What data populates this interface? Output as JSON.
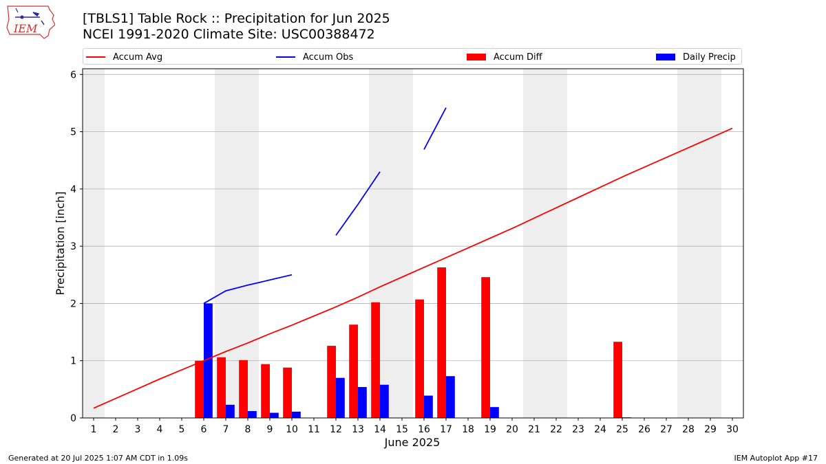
{
  "header": {
    "title_line1": "[TBLS1] Table Rock :: Precipitation for Jun 2025",
    "title_line2": "NCEI 1991-2020 Climate Site: USC00388472",
    "logo_text": "IEM"
  },
  "footer": {
    "left": "Generated at 20 Jul 2025 1:07 AM CDT in 1.09s",
    "right": "IEM Autoplot App #17"
  },
  "colors": {
    "accum_avg": "#ff0000",
    "accum_obs": "#0000ff",
    "accum_diff": "#ff0000",
    "daily_precip": "#0000ff",
    "weekend_shade": "#eeeeee",
    "grid": "#b0b0b0"
  },
  "chart_data": {
    "type": "bar",
    "xlabel": "June 2025",
    "ylabel": "Precipitation [inch]",
    "xlim": [
      1,
      30
    ],
    "ylim": [
      0,
      6.1
    ],
    "yticks": [
      0,
      1,
      2,
      3,
      4,
      5,
      6
    ],
    "grid": "horizontal",
    "legend_placement": "top, above plot",
    "shaded_days": [
      1,
      7,
      8,
      14,
      15,
      21,
      22,
      28,
      29
    ],
    "categories": [
      "1",
      "2",
      "3",
      "4",
      "5",
      "6",
      "7",
      "8",
      "9",
      "10",
      "11",
      "12",
      "13",
      "14",
      "15",
      "16",
      "17",
      "18",
      "19",
      "20",
      "21",
      "22",
      "23",
      "24",
      "25",
      "26",
      "27",
      "28",
      "29",
      "30"
    ],
    "series": [
      {
        "name": "Accum Avg",
        "kind": "line",
        "values": [
          0.17,
          0.34,
          0.51,
          0.68,
          0.84,
          1.0,
          1.16,
          1.31,
          1.47,
          1.62,
          1.78,
          1.94,
          2.11,
          2.29,
          2.46,
          2.63,
          2.8,
          2.97,
          3.14,
          3.31,
          3.49,
          3.67,
          3.85,
          4.03,
          4.21,
          4.38,
          4.55,
          4.72,
          4.89,
          5.06
        ]
      },
      {
        "name": "Accum Obs",
        "kind": "line",
        "values": [
          null,
          null,
          null,
          null,
          null,
          2.0,
          2.22,
          2.32,
          2.41,
          2.5,
          null,
          3.19,
          3.73,
          4.3,
          null,
          4.69,
          5.42,
          null,
          null,
          null,
          null,
          null,
          null,
          null,
          null,
          null,
          null,
          null,
          null,
          null
        ]
      },
      {
        "name": "Accum Diff",
        "kind": "bar",
        "values": [
          0,
          0,
          0,
          0,
          0,
          1.0,
          1.06,
          1.01,
          0.94,
          0.88,
          0,
          1.26,
          1.63,
          2.02,
          0,
          2.07,
          2.63,
          0,
          2.46,
          0,
          0,
          0,
          0,
          0,
          1.33,
          0,
          0,
          0,
          0,
          0
        ]
      },
      {
        "name": "Daily Precip",
        "kind": "bar",
        "values": [
          0,
          0,
          0,
          0,
          0,
          2.0,
          0.23,
          0.12,
          0.09,
          0.11,
          0,
          0.7,
          0.54,
          0.58,
          0,
          0.39,
          0.73,
          0,
          0.19,
          0,
          0,
          0,
          0,
          0,
          0.01,
          0,
          0,
          0,
          0,
          0
        ]
      }
    ]
  }
}
